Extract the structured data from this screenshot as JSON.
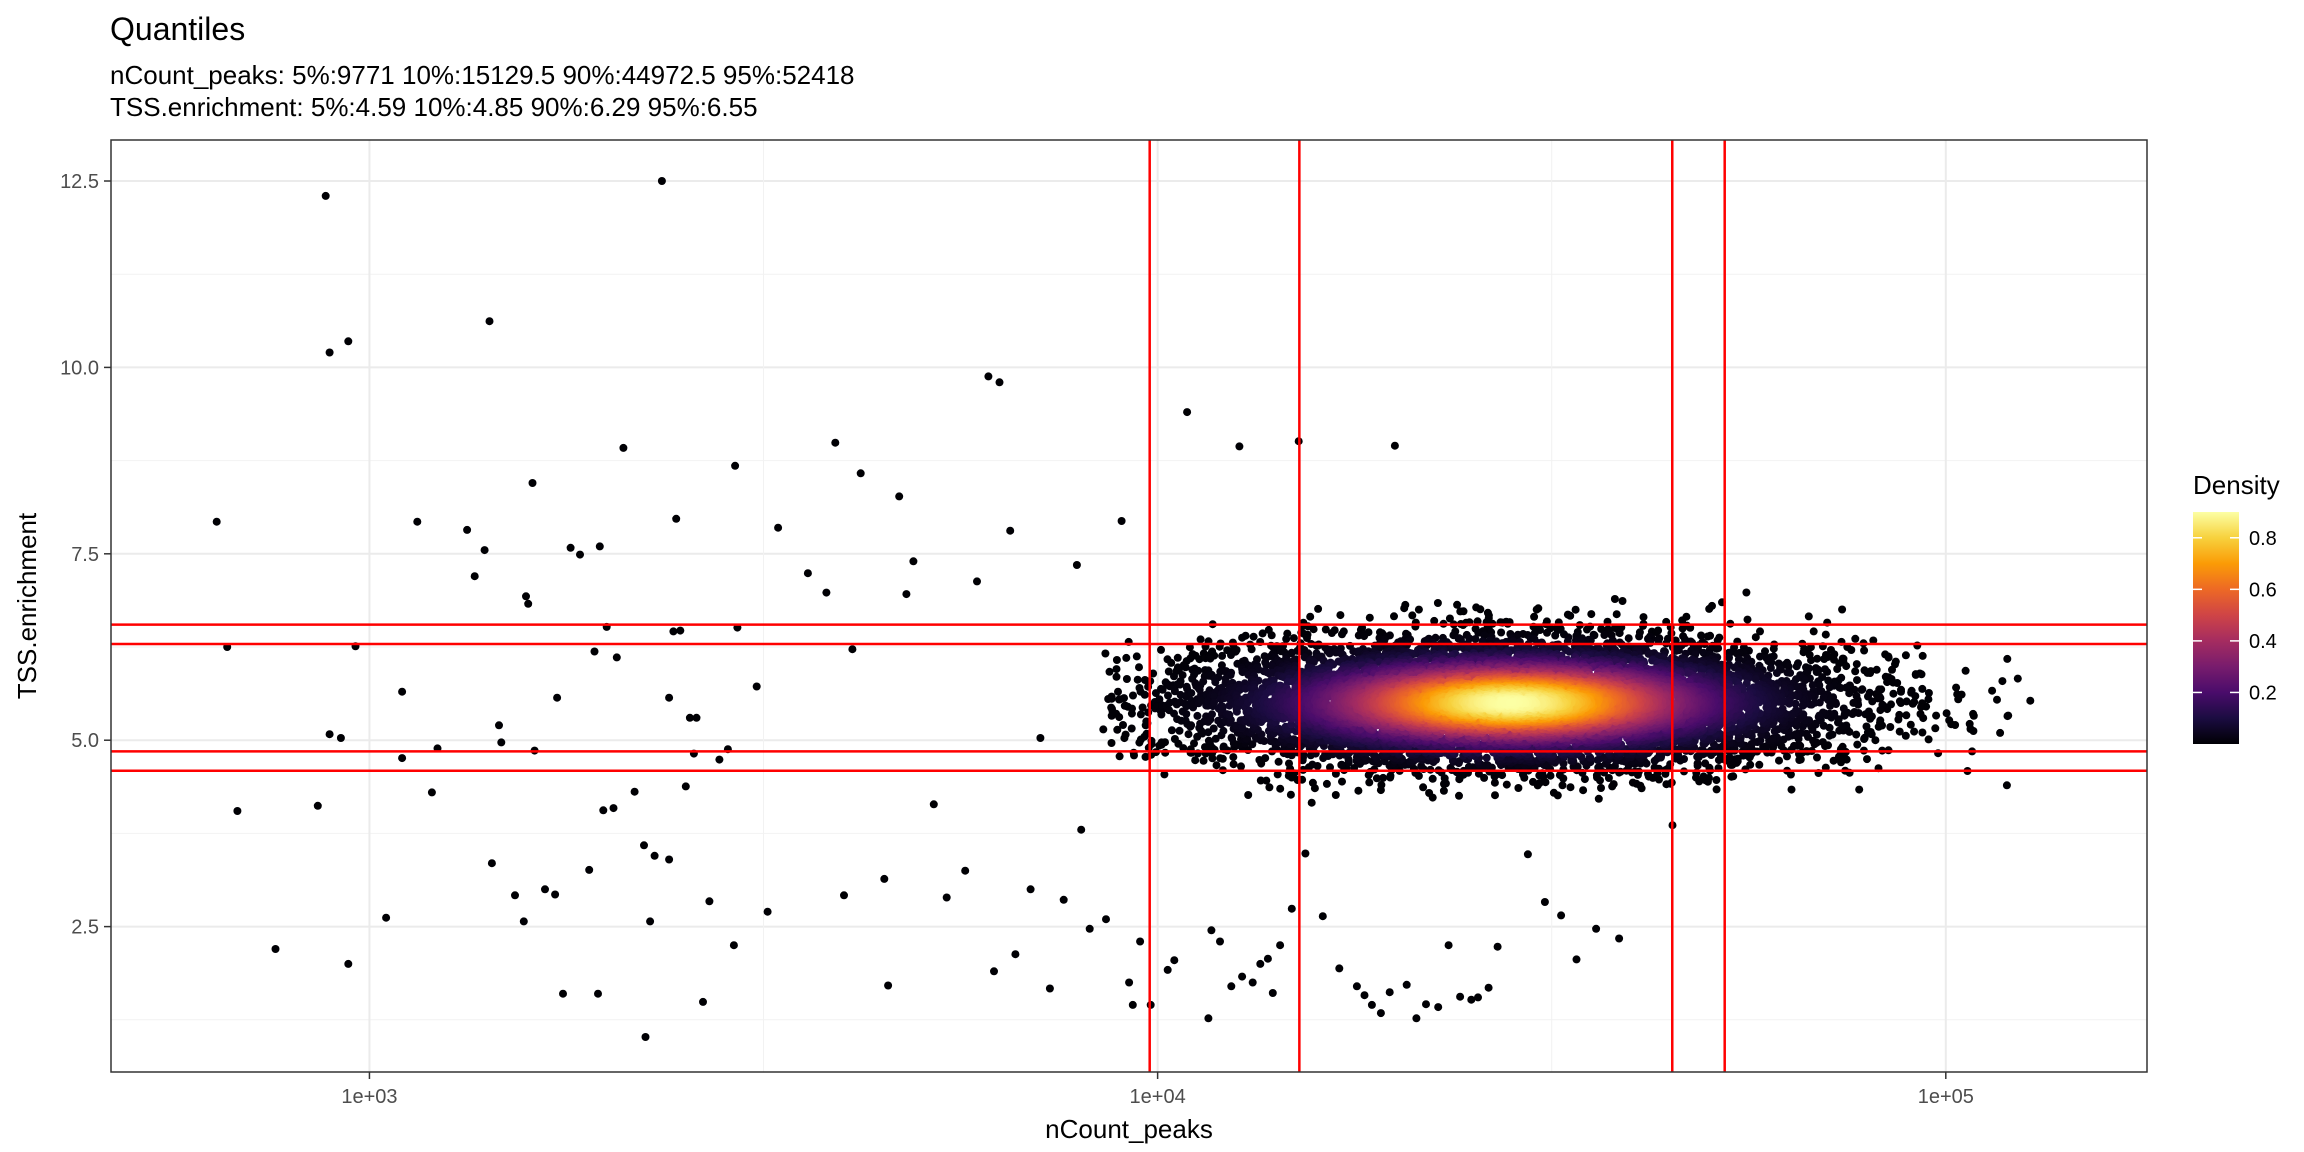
{
  "chart_data": {
    "type": "scatter",
    "title": "Quantiles",
    "subtitle_lines": [
      "nCount_peaks: 5%:9771 10%:15129.5 90%:44972.5 95%:52418",
      "TSS.enrichment: 5%:4.59 10%:4.85 90%:6.29 95%:6.55"
    ],
    "xlabel": "nCount_peaks",
    "ylabel": "TSS.enrichment",
    "x_scale": "log10",
    "xlim": [
      470,
      180000
    ],
    "ylim": [
      0.55,
      13.05
    ],
    "x_ticks": [
      1000,
      10000,
      100000
    ],
    "x_tick_labels": [
      "1e+03",
      "1e+04",
      "1e+05"
    ],
    "y_ticks": [
      2.5,
      5.0,
      7.5,
      10.0,
      12.5
    ],
    "y_tick_labels": [
      "2.5",
      "5.0",
      "7.5",
      "10.0",
      "12.5"
    ],
    "grid": true,
    "color_scale": {
      "name": "Density",
      "palette": [
        "#000004",
        "#1b0c41",
        "#4a0c6b",
        "#781c6d",
        "#a52c60",
        "#cf4446",
        "#ed6925",
        "#fb9b06",
        "#f7d13d",
        "#fcffa4"
      ],
      "range": [
        0,
        0.9
      ],
      "ticks": [
        0.2,
        0.4,
        0.6,
        0.8
      ],
      "tick_labels": [
        "0.2",
        "0.4",
        "0.6",
        "0.8"
      ],
      "legend_position": "right"
    },
    "vlines": [
      9771,
      15129.5,
      44972.5,
      52418
    ],
    "hlines": [
      4.59,
      4.85,
      6.29,
      6.55
    ],
    "reference_line_color": "#ff0000",
    "density_core": {
      "center_x": 28000,
      "center_y": 5.5,
      "n_points": 9000
    },
    "outliers": [
      [
        640,
        7.93
      ],
      [
        660,
        6.25
      ],
      [
        680,
        4.05
      ],
      [
        760,
        2.2
      ],
      [
        860,
        4.12
      ],
      [
        880,
        12.3
      ],
      [
        890,
        10.2
      ],
      [
        890,
        5.08
      ],
      [
        920,
        5.03
      ],
      [
        940,
        2.0
      ],
      [
        940,
        10.35
      ],
      [
        960,
        6.26
      ],
      [
        1050,
        2.62
      ],
      [
        1100,
        5.65
      ],
      [
        1100,
        4.76
      ],
      [
        1150,
        7.93
      ],
      [
        1200,
        4.3
      ],
      [
        1220,
        4.89
      ],
      [
        1330,
        7.82
      ],
      [
        1360,
        7.2
      ],
      [
        1400,
        7.55
      ],
      [
        1420,
        10.62
      ],
      [
        1430,
        3.35
      ],
      [
        1460,
        5.2
      ],
      [
        1470,
        4.97
      ],
      [
        1530,
        2.92
      ],
      [
        1570,
        2.57
      ],
      [
        1580,
        6.93
      ],
      [
        1590,
        6.83
      ],
      [
        1610,
        8.45
      ],
      [
        1620,
        4.86
      ],
      [
        1670,
        3.0
      ],
      [
        1720,
        2.93
      ],
      [
        1730,
        5.57
      ],
      [
        1760,
        1.6
      ],
      [
        1800,
        7.58
      ],
      [
        1850,
        7.49
      ],
      [
        1900,
        3.26
      ],
      [
        1930,
        6.19
      ],
      [
        1950,
        1.6
      ],
      [
        1960,
        7.6
      ],
      [
        1980,
        4.06
      ],
      [
        2000,
        6.52
      ],
      [
        2040,
        4.09
      ],
      [
        2060,
        6.11
      ],
      [
        2100,
        8.92
      ],
      [
        2170,
        4.31
      ],
      [
        2230,
        3.59
      ],
      [
        2240,
        1.02
      ],
      [
        2270,
        2.57
      ],
      [
        2300,
        3.45
      ],
      [
        2350,
        12.5
      ],
      [
        2400,
        3.4
      ],
      [
        2400,
        5.57
      ],
      [
        2430,
        6.46
      ],
      [
        2450,
        7.97
      ],
      [
        2480,
        6.47
      ],
      [
        2520,
        4.38
      ],
      [
        2550,
        5.3
      ],
      [
        2580,
        4.82
      ],
      [
        2600,
        5.3
      ],
      [
        2650,
        1.49
      ],
      [
        2700,
        2.84
      ],
      [
        2780,
        4.74
      ],
      [
        2850,
        4.88
      ],
      [
        2900,
        2.25
      ],
      [
        2910,
        8.68
      ],
      [
        2930,
        6.51
      ],
      [
        3100,
        5.72
      ],
      [
        3200,
        2.7
      ],
      [
        3300,
        7.85
      ],
      [
        3600,
        7.24
      ],
      [
        3800,
        6.98
      ],
      [
        3900,
        8.99
      ],
      [
        4000,
        2.92
      ],
      [
        4100,
        6.22
      ],
      [
        4200,
        8.58
      ],
      [
        4500,
        3.14
      ],
      [
        4550,
        1.71
      ],
      [
        4700,
        8.27
      ],
      [
        4800,
        6.96
      ],
      [
        4900,
        7.4
      ],
      [
        5200,
        4.14
      ],
      [
        5400,
        2.89
      ],
      [
        5700,
        3.25
      ],
      [
        5900,
        7.13
      ],
      [
        6100,
        9.88
      ],
      [
        6200,
        1.9
      ],
      [
        6300,
        9.8
      ],
      [
        6500,
        7.81
      ],
      [
        6600,
        2.13
      ],
      [
        6900,
        3.0
      ],
      [
        7100,
        5.03
      ],
      [
        7300,
        1.67
      ],
      [
        7600,
        2.86
      ],
      [
        7900,
        7.35
      ],
      [
        8000,
        3.8
      ],
      [
        8200,
        2.47
      ],
      [
        8600,
        2.6
      ],
      [
        9000,
        7.94
      ],
      [
        9200,
        1.75
      ],
      [
        9300,
        1.45
      ],
      [
        9500,
        2.3
      ],
      [
        9800,
        1.45
      ],
      [
        10300,
        1.92
      ],
      [
        10500,
        2.05
      ],
      [
        10900,
        9.4
      ],
      [
        11600,
        1.27
      ],
      [
        11700,
        2.45
      ],
      [
        12000,
        2.3
      ],
      [
        12400,
        1.7
      ],
      [
        12700,
        8.94
      ],
      [
        12800,
        1.83
      ],
      [
        13200,
        1.75
      ],
      [
        13500,
        2.0
      ],
      [
        13800,
        2.07
      ],
      [
        14000,
        1.61
      ],
      [
        14300,
        2.25
      ],
      [
        14800,
        2.74
      ],
      [
        15100,
        9.01
      ],
      [
        15400,
        3.48
      ],
      [
        16200,
        2.64
      ],
      [
        17000,
        1.94
      ],
      [
        17900,
        1.7
      ],
      [
        18300,
        1.58
      ],
      [
        18700,
        1.45
      ],
      [
        19200,
        1.34
      ],
      [
        19700,
        1.62
      ],
      [
        20000,
        8.95
      ],
      [
        20700,
        1.72
      ],
      [
        21300,
        1.27
      ],
      [
        21900,
        1.46
      ],
      [
        22700,
        1.42
      ],
      [
        23400,
        2.25
      ],
      [
        24200,
        1.56
      ],
      [
        25000,
        1.52
      ],
      [
        25500,
        1.55
      ],
      [
        26300,
        1.68
      ],
      [
        27000,
        2.23
      ],
      [
        29500,
        3.47
      ],
      [
        31000,
        2.83
      ],
      [
        32500,
        2.65
      ],
      [
        34000,
        2.06
      ],
      [
        36000,
        2.47
      ],
      [
        38500,
        2.34
      ],
      [
        45000,
        3.86
      ],
      [
        52000,
        6.85
      ],
      [
        75000,
        6.25
      ],
      [
        92000,
        6.27
      ],
      [
        108000,
        4.85
      ],
      [
        120000,
        5.33
      ],
      [
        128000,
        5.53
      ]
    ]
  }
}
